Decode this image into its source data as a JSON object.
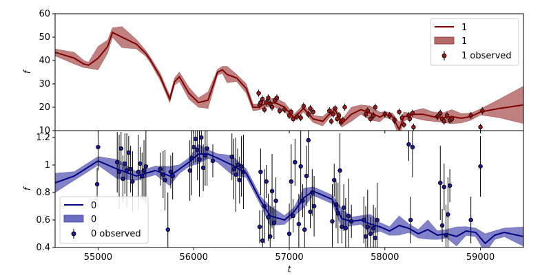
{
  "chart_data": [
    {
      "type": "line",
      "panel": "top",
      "ylabel": "f",
      "xlim": [
        54550,
        59450
      ],
      "ylim": [
        10,
        60
      ],
      "yticks": [
        10,
        20,
        30,
        40,
        50,
        60
      ],
      "grid": false,
      "legend_position": "upper right",
      "legend": [
        "1",
        "1",
        "1 observed"
      ],
      "colors": {
        "line": "#800000",
        "band": "#b56a6a",
        "points": "#a01c1c"
      },
      "series": [
        {
          "name": "1",
          "kind": "model",
          "x": [
            54550,
            54750,
            54850,
            54900,
            55000,
            55100,
            55150,
            55250,
            55400,
            55500,
            55550,
            55650,
            55750,
            55800,
            55850,
            55950,
            56050,
            56150,
            56250,
            56300,
            56350,
            56450,
            56550,
            56620,
            56680,
            56750,
            56850,
            56950,
            57050,
            57150,
            57250,
            57350,
            57420,
            57480,
            57550,
            57650,
            57750,
            57850,
            57950,
            58000,
            58080,
            58150,
            58200,
            58250,
            58300,
            58400,
            58500,
            58600,
            58700,
            58800,
            58900,
            59000,
            59200,
            59450
          ],
          "y": [
            43.5,
            41,
            38.5,
            38,
            41,
            46,
            52,
            50,
            47,
            43,
            40,
            33,
            23.5,
            31,
            33,
            26,
            22,
            23,
            35,
            36,
            34,
            32.5,
            28,
            20,
            20,
            21.5,
            22,
            20,
            15.5,
            19.5,
            15,
            14,
            17,
            19,
            13,
            17,
            19,
            17.5,
            15.8,
            17,
            16,
            10.5,
            16,
            16.3,
            17,
            17,
            16,
            15.5,
            16,
            15.3,
            16,
            18,
            19.5,
            21
          ],
          "band": [
            1.5,
            2.5,
            1.5,
            1.3,
            5,
            2.8,
            2,
            4.5,
            2,
            1.2,
            1.2,
            1.5,
            1.5,
            1.5,
            2,
            2.5,
            2,
            3.5,
            1.2,
            1.5,
            3.5,
            1.5,
            2,
            1.5,
            1.2,
            1.5,
            2,
            2,
            1.5,
            1.5,
            1.5,
            2,
            1.5,
            1.5,
            1.5,
            3,
            2,
            3,
            2,
            1.2,
            1.5,
            3,
            2,
            1.2,
            1.5,
            2.5,
            2,
            2,
            3,
            2,
            1.5,
            1.3,
            4,
            8
          ]
        },
        {
          "name": "1 observed",
          "kind": "points",
          "x": [
            56680,
            56690,
            56700,
            56720,
            56740,
            56760,
            56780,
            56800,
            56820,
            56850,
            56870,
            56900,
            56950,
            57000,
            57020,
            57040,
            57080,
            57120,
            57150,
            57200,
            57220,
            57250,
            57420,
            57440,
            57460,
            57480,
            57500,
            57520,
            57540,
            57560,
            57580,
            57800,
            57820,
            57850,
            57880,
            57900,
            58000,
            58050,
            58100,
            58150,
            58180,
            58200,
            58250,
            58260,
            58290,
            58300,
            58550,
            58580,
            58600,
            58620,
            58650,
            58680,
            58700,
            58900,
            59000,
            59020
          ],
          "y": [
            26,
            21,
            22,
            23.5,
            19,
            22,
            24,
            21.5,
            20,
            23,
            24,
            18.5,
            19,
            16.5,
            18,
            15,
            16,
            15.5,
            20.5,
            17,
            19.5,
            18,
            18.5,
            14,
            17,
            19.5,
            15,
            16.5,
            13.5,
            14.5,
            20,
            17,
            18.5,
            15,
            16.5,
            20,
            17,
            16.5,
            14.5,
            18,
            15.5,
            12.5,
            16.5,
            15,
            17.5,
            11.5,
            16,
            17.5,
            15,
            14,
            16.5,
            14.5,
            15,
            16.5,
            11.5,
            18.5
          ]
        }
      ]
    },
    {
      "type": "line",
      "panel": "bottom",
      "xlabel": "t",
      "ylabel": "f",
      "xlim": [
        54550,
        59450
      ],
      "ylim": [
        0.4,
        1.25
      ],
      "xticks": [
        55000,
        56000,
        57000,
        58000,
        59000
      ],
      "yticks": [
        0.4,
        0.6,
        0.8,
        1.0,
        1.2
      ],
      "grid": false,
      "legend_position": "lower left",
      "legend": [
        "0",
        "0",
        "0 observed"
      ],
      "colors": {
        "line": "#000080",
        "band": "#6c6cc0",
        "points": "#1a1a9a"
      },
      "series": [
        {
          "name": "0",
          "kind": "model",
          "x": [
            54550,
            54750,
            55000,
            55200,
            55400,
            55600,
            55750,
            55850,
            55950,
            56050,
            56150,
            56250,
            56400,
            56550,
            56700,
            56800,
            56950,
            57050,
            57150,
            57250,
            57450,
            57550,
            57650,
            57750,
            57850,
            57950,
            58050,
            58150,
            58250,
            58350,
            58450,
            58550,
            58650,
            58750,
            58850,
            58950,
            59050,
            59150,
            59250,
            59450
          ],
          "y": [
            0.87,
            0.92,
            1.03,
            0.97,
            0.92,
            0.96,
            0.92,
            0.97,
            1.02,
            1.08,
            1.08,
            1.05,
            1.0,
            0.94,
            0.74,
            0.63,
            0.6,
            0.66,
            0.76,
            0.81,
            0.75,
            0.61,
            0.59,
            0.6,
            0.57,
            0.55,
            0.52,
            0.56,
            0.54,
            0.5,
            0.53,
            0.49,
            0.5,
            0.48,
            0.52,
            0.51,
            0.43,
            0.49,
            0.51,
            0.48
          ]
        },
        {
          "name": "0 observed",
          "kind": "points",
          "x": [
            54990,
            55000,
            55200,
            55220,
            55240,
            55260,
            55280,
            55300,
            55320,
            55340,
            55360,
            55420,
            55440,
            55460,
            55480,
            55500,
            55650,
            55680,
            55700,
            55730,
            55760,
            55780,
            55960,
            55980,
            56000,
            56020,
            56040,
            56060,
            56080,
            56100,
            56120,
            56140,
            56200,
            56400,
            56420,
            56440,
            56460,
            56480,
            56500,
            56520,
            56690,
            56700,
            56720,
            56740,
            56760,
            56780,
            56800,
            56820,
            56840,
            56860,
            57000,
            57020,
            57040,
            57060,
            57100,
            57120,
            57140,
            57160,
            57180,
            57200,
            57220,
            57240,
            57260,
            57450,
            57470,
            57490,
            57510,
            57530,
            57550,
            57570,
            57590,
            57620,
            57650,
            57780,
            57800,
            57820,
            57850,
            57880,
            57900,
            57920,
            58250,
            58270,
            58290,
            58580,
            58600,
            58620,
            58640,
            58660,
            58680,
            58900,
            59000
          ],
          "y": [
            0.86,
            1.13,
            1.02,
            0.95,
            1.12,
            0.9,
            1.01,
            0.96,
            1.09,
            0.97,
            0.88,
            0.95,
            1.01,
            0.92,
            0.96,
            0.99,
            0.97,
            0.93,
            0.89,
            0.53,
            0.95,
            0.92,
            0.96,
            1.05,
            1.13,
            1.19,
            1.11,
            1.04,
            1.2,
            0.98,
            1.07,
            1.12,
            1.03,
            1.06,
            0.97,
            0.93,
            1.0,
            0.89,
            0.99,
            0.95,
            0.55,
            0.95,
            0.45,
            0.7,
            0.88,
            0.62,
            0.48,
            0.81,
            0.58,
            0.74,
            0.5,
            0.88,
            0.63,
            1.02,
            0.57,
            0.99,
            0.74,
            0.53,
            0.92,
            1.18,
            0.66,
            0.8,
            0.7,
            0.59,
            0.89,
            0.71,
            0.65,
            0.96,
            0.55,
            0.69,
            0.54,
            0.63,
            0.59,
            0.6,
            0.48,
            0.55,
            0.5,
            0.54,
            0.47,
            0.6,
            1.15,
            0.6,
            1.13,
            0.87,
            0.56,
            0.84,
            0.49,
            0.64,
            0.85,
            0.6,
            0.99
          ]
        }
      ]
    }
  ]
}
